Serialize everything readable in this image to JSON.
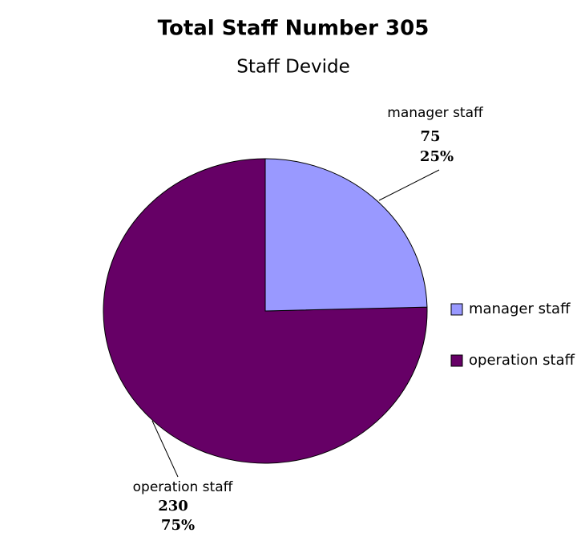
{
  "chart_data": {
    "type": "pie",
    "title": "Total Staff Number 305",
    "subtitle": "Staff Devide",
    "categories": [
      "manager staff",
      "operation staff"
    ],
    "values": [
      75,
      230
    ],
    "percent_labels": [
      "25%",
      "75%"
    ],
    "colors": [
      "#9999ff",
      "#660066"
    ],
    "legend": "right"
  }
}
